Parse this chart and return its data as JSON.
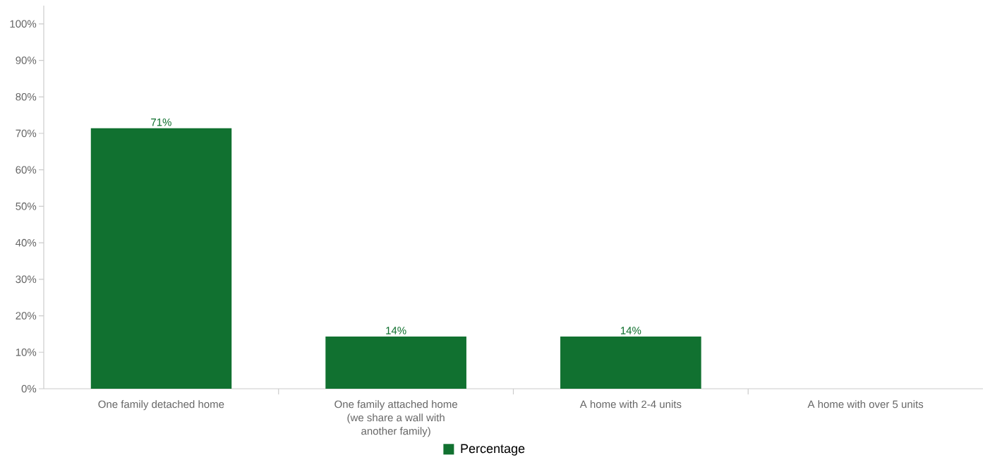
{
  "chart_data": {
    "type": "bar",
    "categories": [
      "One family detached home",
      "One family attached home (we share a wall with another family)",
      "A home with 2-4 units",
      "A home with over 5 units"
    ],
    "series": [
      {
        "name": "Percentage",
        "color": "#117130",
        "values": [
          71.4,
          14.3,
          14.3,
          0
        ],
        "value_labels": [
          "71%",
          "14%",
          "14%",
          null
        ]
      }
    ],
    "ylim": [
      0,
      105
    ],
    "yticks": [
      {
        "value": 0,
        "label": "0%"
      },
      {
        "value": 10,
        "label": "10%"
      },
      {
        "value": 20,
        "label": "20%"
      },
      {
        "value": 30,
        "label": "30%"
      },
      {
        "value": 40,
        "label": "40%"
      },
      {
        "value": 50,
        "label": "50%"
      },
      {
        "value": 60,
        "label": "60%"
      },
      {
        "value": 70,
        "label": "70%"
      },
      {
        "value": 80,
        "label": "80%"
      },
      {
        "value": 90,
        "label": "90%"
      },
      {
        "value": 100,
        "label": "100%"
      }
    ],
    "legend": "bottom"
  }
}
